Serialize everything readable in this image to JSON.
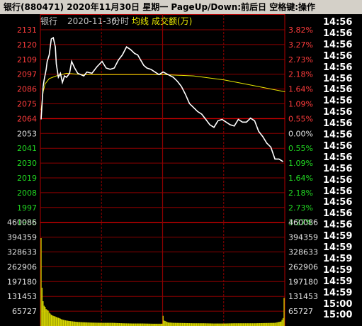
{
  "title_bar": "银行(880471)  2020年11月30日 星期一  PageUp/Down:前后日 空格键:操作",
  "chart_data": {
    "type": "line",
    "header": {
      "name": "银行",
      "date": "2020-11-30",
      "view": "分时",
      "avg_label": "均线",
      "vol_label": "成交额(万)"
    },
    "prev_close": 2053,
    "price_ticks_up": [
      "2131",
      "2120",
      "2109",
      "2097",
      "2086",
      "2075",
      "2064"
    ],
    "price_tick_mid": "2053",
    "price_ticks_down": [
      "2041",
      "2030",
      "2019",
      "2008",
      "1997",
      "1985"
    ],
    "pct_ticks_up": [
      "3.82%",
      "3.27%",
      "2.73%",
      "2.18%",
      "1.64%",
      "1.09%",
      "0.55%"
    ],
    "pct_tick_mid": "0.00%",
    "pct_ticks_down": [
      "0.55%",
      "1.09%",
      "1.64%",
      "2.18%",
      "2.73%",
      "3.27%"
    ],
    "volume_ticks": [
      "460086",
      "394359",
      "328633",
      "262906",
      "197180",
      "131453",
      "65727"
    ],
    "price_ylim": [
      1985,
      2131
    ],
    "volume_ylim": [
      0,
      460086
    ],
    "price_series": {
      "t": [
        0,
        2,
        3,
        5,
        6,
        8,
        10,
        12,
        14,
        15,
        17,
        19,
        21,
        23,
        25,
        28,
        30,
        33,
        36,
        39,
        42,
        45,
        50,
        55,
        60,
        64,
        68,
        72,
        76,
        80,
        84,
        88,
        92,
        95,
        98,
        101,
        104,
        108,
        112,
        116,
        120,
        125,
        130,
        134,
        138,
        142,
        146,
        150,
        154,
        158,
        162,
        166,
        170,
        174,
        178,
        182,
        186,
        190,
        194,
        198,
        202,
        206,
        210,
        214,
        218,
        222,
        226,
        230,
        234,
        238
      ],
      "values": [
        2063,
        2088,
        2093,
        2101,
        2107,
        2112,
        2124,
        2125,
        2118,
        2105,
        2095,
        2098,
        2091,
        2096,
        2095,
        2098,
        2107,
        2102,
        2098,
        2097,
        2096,
        2099,
        2098,
        2103,
        2107,
        2102,
        2101,
        2102,
        2108,
        2112,
        2118,
        2116,
        2113,
        2112,
        2108,
        2104,
        2102,
        2101,
        2099,
        2097,
        2099,
        2097,
        2095,
        2092,
        2088,
        2082,
        2075,
        2072,
        2069,
        2067,
        2063,
        2059,
        2057,
        2062,
        2063,
        2061,
        2059,
        2058,
        2063,
        2061,
        2061,
        2064,
        2062,
        2054,
        2050,
        2045,
        2042,
        2033,
        2033,
        2031
      ]
    },
    "avg_series": {
      "t": [
        0,
        2,
        4,
        8,
        15,
        25,
        40,
        60,
        90,
        120,
        150,
        180,
        200,
        220,
        240
      ],
      "values": [
        2070,
        2084,
        2090,
        2094,
        2096,
        2098,
        2097,
        2097,
        2097,
        2097,
        2096,
        2093,
        2090,
        2087,
        2084
      ]
    },
    "volume_series": {
      "t": [
        0,
        1,
        2,
        3,
        4,
        5,
        6,
        7,
        8,
        9,
        10,
        12,
        14,
        16,
        18,
        20,
        24,
        28,
        32,
        36,
        40,
        50,
        60,
        70,
        80,
        90,
        100,
        110,
        119,
        120,
        121,
        125,
        130,
        140,
        150,
        160,
        170,
        180,
        190,
        200,
        210,
        220,
        230,
        236,
        238,
        239
      ],
      "values": [
        390000,
        170000,
        110000,
        90000,
        85000,
        75000,
        72000,
        68000,
        60000,
        55000,
        50000,
        45000,
        42000,
        38000,
        35000,
        30000,
        25000,
        22000,
        20000,
        18000,
        17000,
        15000,
        14000,
        14000,
        12000,
        11000,
        11000,
        10000,
        10000,
        45000,
        24000,
        16000,
        14000,
        13000,
        12000,
        12000,
        11000,
        11000,
        12000,
        12000,
        12000,
        13000,
        14000,
        20000,
        35000,
        125000
      ]
    }
  },
  "time_ticks": [
    "14:56",
    "14:56",
    "14:56",
    "14:56",
    "14:56",
    "14:56",
    "14:56",
    "14:56",
    "14:56",
    "14:56",
    "14:56",
    "14:56",
    "14:56",
    "14:56",
    "14:56",
    "14:56",
    "14:56",
    "14:56",
    "14:56",
    "14:59",
    "14:59",
    "14:59",
    "14:59",
    "14:59",
    "14:59",
    "15:00",
    "15:00"
  ]
}
